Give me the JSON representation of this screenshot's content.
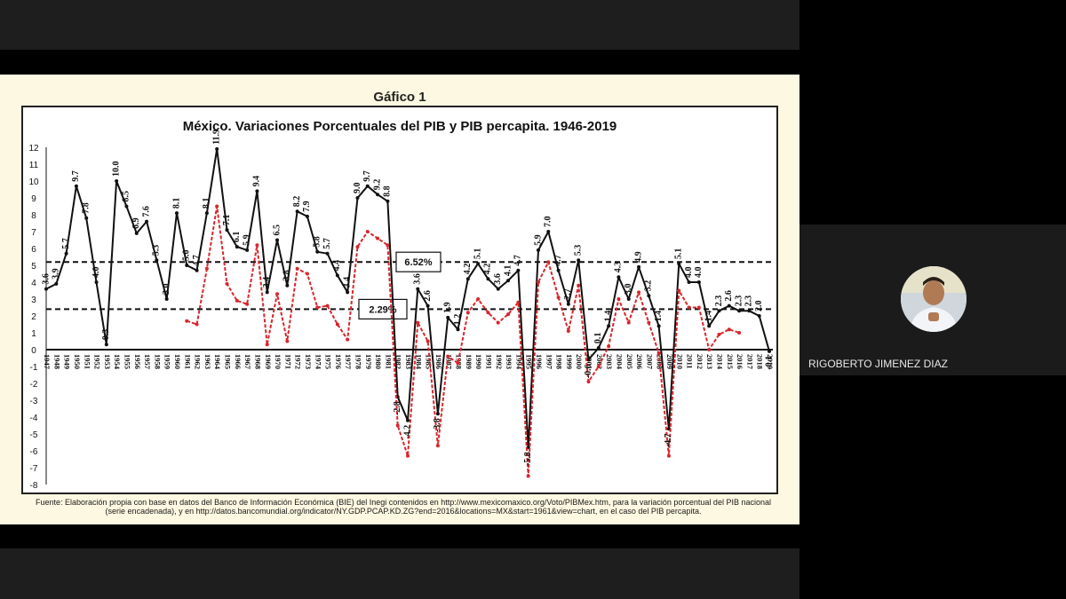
{
  "slide": {
    "title": "Gáfico 1",
    "source_note": "Fuente: Elaboración propia con base en datos del Banco de Información Económica (BIE) del Inegi contenidos en http://www.mexicomaxico.org/Voto/PIBMex.htm, para la variación porcentual del PIB nacional (serie encadenada), y en http://datos.bancomundial.org/indicator/NY.GDP.PCAP.KD.ZG?end=2016&locations=MX&start=1961&view=chart, en el caso del PIB percapita."
  },
  "participant": {
    "name": "RIGOBERTO JIMENEZ DIAZ"
  },
  "controls": [
    "arrow-left-icon",
    "pen-icon",
    "subtitles-icon",
    "zoom-icon",
    "arrow-right-icon"
  ],
  "chart_data": {
    "type": "line",
    "title": "México. Variaciones Porcentuales del PIB y PIB percapita. 1946-2019",
    "ylim": [
      -8,
      12
    ],
    "yticks": [
      12,
      11,
      10,
      9,
      8,
      7,
      6,
      5,
      4,
      3,
      2,
      1,
      0,
      -1,
      -2,
      -3,
      -4,
      -5,
      -6,
      -7,
      -8
    ],
    "x": [
      1947,
      1948,
      1949,
      1950,
      1951,
      1952,
      1953,
      1954,
      1955,
      1956,
      1957,
      1958,
      1959,
      1960,
      1961,
      1962,
      1963,
      1964,
      1965,
      1966,
      1967,
      1968,
      1969,
      1970,
      1971,
      1972,
      1973,
      1974,
      1975,
      1976,
      1977,
      1978,
      1979,
      1980,
      1981,
      1982,
      1983,
      1984,
      1985,
      1986,
      1987,
      1988,
      1989,
      1990,
      1991,
      1992,
      1993,
      1994,
      1995,
      1996,
      1997,
      1998,
      1999,
      2000,
      2001,
      2002,
      2003,
      2004,
      2005,
      2006,
      2007,
      2008,
      2009,
      2010,
      2011,
      2012,
      2013,
      2014,
      2015,
      2016,
      2017,
      2018,
      2019
    ],
    "series": [
      {
        "key": "pib",
        "color": "#111111",
        "style": "solid",
        "values": [
          3.6,
          3.9,
          5.7,
          9.7,
          7.8,
          4.0,
          0.3,
          10.0,
          8.5,
          6.9,
          7.6,
          5.3,
          3.0,
          8.1,
          5.0,
          4.7,
          8.1,
          11.9,
          7.1,
          6.1,
          5.9,
          9.4,
          3.4,
          6.5,
          3.8,
          8.2,
          7.9,
          5.8,
          5.7,
          4.4,
          3.4,
          9.0,
          9.7,
          9.2,
          8.8,
          -2.8,
          -4.2,
          3.6,
          2.6,
          -3.8,
          1.9,
          1.2,
          4.2,
          5.1,
          4.2,
          3.6,
          4.1,
          4.7,
          -5.8,
          5.9,
          7.0,
          4.7,
          2.7,
          5.3,
          -0.6,
          0.1,
          1.4,
          4.3,
          3.0,
          4.9,
          3.2,
          1.4,
          -4.7,
          5.1,
          4.0,
          4.0,
          1.4,
          2.3,
          2.6,
          2.3,
          2.3,
          2.0,
          -0.1
        ],
        "labels": [
          "3.6",
          "3.9",
          "5.7",
          "9.7",
          "7.8",
          "4.0",
          "0.3",
          "10.0",
          "8.5",
          "6.9",
          "7.6",
          "5.3",
          "3.0",
          "8.1",
          "5.0",
          "4.7",
          "8.1",
          "11.9",
          "7.1",
          "6.1",
          "5.9",
          "9.4",
          "3.4",
          "6.5",
          "3.8",
          "8.2",
          "7.9",
          "5.8",
          "5.7",
          "4.4",
          "3.4",
          "9.0",
          "9.7",
          "9.2",
          "8.8",
          "-2.8",
          "-4.2",
          "3.6",
          "2.6",
          "-3.8",
          "1.9",
          "1.2",
          "4.2",
          "5.1",
          "4.2",
          "3.6",
          "4.1",
          "4.7",
          "-5.8",
          "5.9",
          "7.0",
          "4.7",
          "2.7",
          "5.3",
          "-0.6",
          "0.1",
          "1.4",
          "4.3",
          "3.0",
          "4.9",
          "3.2",
          "1.4",
          "-4.7",
          "5.1",
          "4.0",
          "4.0",
          "1.4",
          "2.3",
          "2.6",
          "2.3",
          "2.3",
          "2.0",
          "-0.1"
        ]
      },
      {
        "key": "pib_percapita",
        "color": "#d8262c",
        "style": "dashed",
        "values": [
          null,
          null,
          null,
          null,
          null,
          null,
          null,
          null,
          null,
          null,
          null,
          null,
          null,
          null,
          1.7,
          1.5,
          4.8,
          8.5,
          3.9,
          2.9,
          2.7,
          6.2,
          0.3,
          3.3,
          0.5,
          4.8,
          4.5,
          2.5,
          2.6,
          1.5,
          0.6,
          6.1,
          7.0,
          6.6,
          6.2,
          -4.5,
          -6.3,
          1.6,
          0.5,
          -5.7,
          -0.4,
          -0.8,
          2.2,
          3.0,
          2.2,
          1.6,
          2.1,
          2.8,
          -7.5,
          4.0,
          5.2,
          3.1,
          1.1,
          3.8,
          -1.9,
          -1.0,
          0.2,
          3.0,
          1.6,
          3.4,
          1.6,
          -0.2,
          -6.3,
          3.5,
          2.5,
          2.5,
          0.0,
          0.9,
          1.2,
          1.0,
          null,
          null,
          null
        ]
      }
    ],
    "hlines": [
      {
        "value": 5.2,
        "label": "6.52%"
      },
      {
        "value": 2.4,
        "label": "2.29%"
      }
    ]
  }
}
